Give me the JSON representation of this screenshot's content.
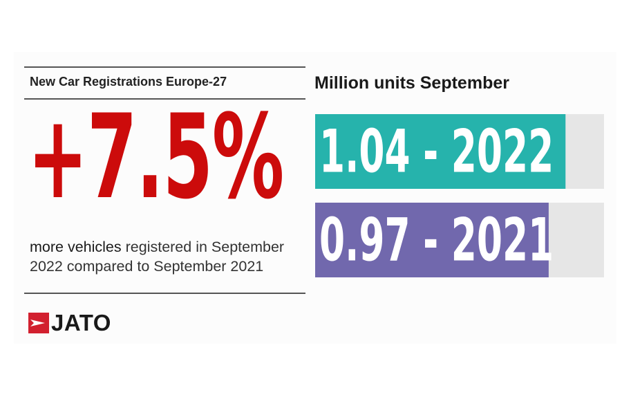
{
  "left": {
    "heading": "New Car Registrations Europe-27",
    "stat": "+7.5%",
    "caption_highlight": "more vehicles",
    "caption_rest": " registered in September 2022 compared to September 2021"
  },
  "logo": {
    "text": "JATO"
  },
  "colors": {
    "stat_red": "#cc0b0b",
    "bar_2022": "#26b3ac",
    "bar_2021": "#7168ad",
    "track": "#e6e6e6",
    "logo_red": "#d2202f"
  },
  "chart_data": {
    "type": "bar",
    "orientation": "horizontal",
    "title": "Million units September",
    "categories": [
      "2022",
      "2021"
    ],
    "values": [
      1.04,
      0.97
    ],
    "labels": [
      "1.04 - 2022",
      "0.97 - 2021"
    ],
    "xlim": [
      0,
      1.2
    ],
    "grid": false
  }
}
